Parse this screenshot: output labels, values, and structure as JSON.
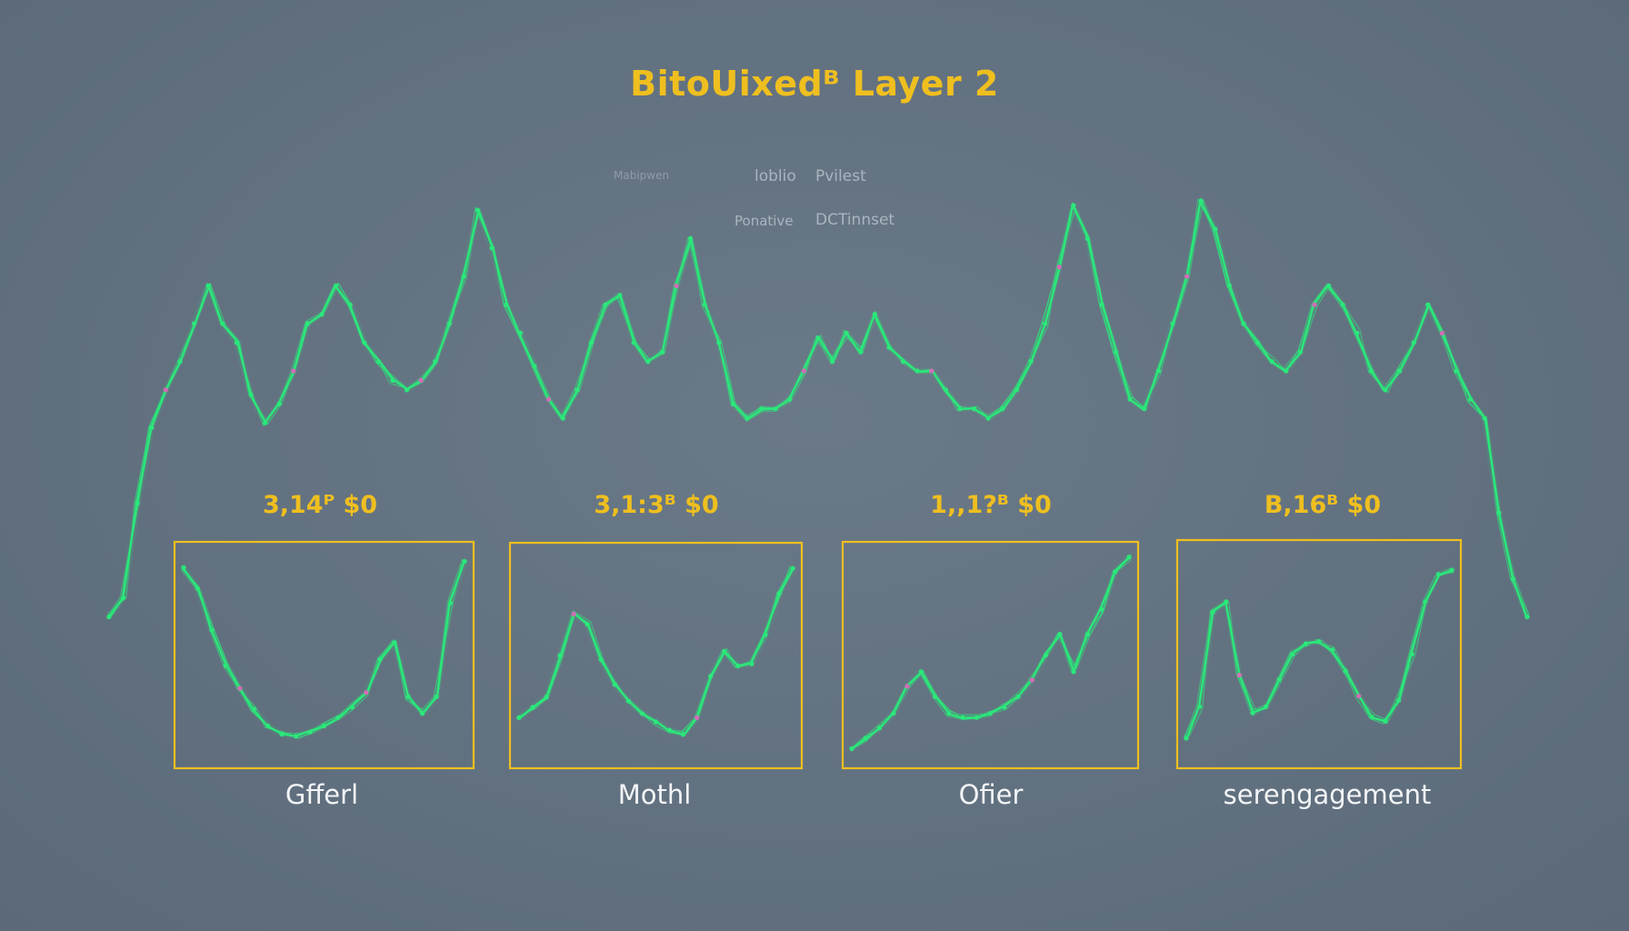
{
  "title": "BitoUixedᴮ Layer 2",
  "legend_texts": [
    "Mabipwen",
    "loblio",
    "Pvilest",
    "Ponative",
    "DCTinnset"
  ],
  "colors": {
    "background": "#627180",
    "accent": "#efbf1f",
    "line_green": "#2be87a",
    "line_pink": "#d46bb6",
    "label_white": "#f2f4f6"
  },
  "chart_data": [
    {
      "type": "line",
      "title": "BitoUixedᴮ Layer 2",
      "xlabel": "",
      "ylabel": "",
      "grid": false,
      "x": [
        0,
        1,
        2,
        3,
        4,
        5,
        6,
        7,
        8,
        9,
        10,
        11,
        12,
        13,
        14,
        15,
        16,
        17,
        18,
        19,
        20,
        21,
        22,
        23,
        24,
        25,
        26,
        27,
        28,
        29,
        30,
        31,
        32,
        33,
        34,
        35,
        36,
        37,
        38,
        39,
        40,
        41,
        42,
        43,
        44,
        45,
        46,
        47,
        48,
        49,
        50,
        51,
        52,
        53,
        54,
        55,
        56,
        57,
        58,
        59,
        60,
        61,
        62,
        63,
        64,
        65,
        66,
        67,
        68,
        69,
        70,
        71,
        72,
        73,
        74,
        75,
        76,
        77,
        78,
        79,
        80,
        81,
        82,
        83,
        84,
        85,
        86,
        87,
        88,
        89,
        90,
        91,
        92,
        93,
        94,
        95,
        96,
        97,
        98,
        99,
        100
      ],
      "series": [
        {
          "values": [
            0.08,
            0.12,
            0.32,
            0.48,
            0.56,
            0.62,
            0.7,
            0.78,
            0.7,
            0.66,
            0.55,
            0.49,
            0.53,
            0.6,
            0.7,
            0.72,
            0.78,
            0.74,
            0.66,
            0.62,
            0.58,
            0.56,
            0.58,
            0.62,
            0.7,
            0.8,
            0.94,
            0.86,
            0.74,
            0.68,
            0.61,
            0.54,
            0.5,
            0.56,
            0.66,
            0.74,
            0.76,
            0.66,
            0.62,
            0.64,
            0.78,
            0.88,
            0.74,
            0.66,
            0.53,
            0.5,
            0.52,
            0.52,
            0.54,
            0.6,
            0.67,
            0.62,
            0.68,
            0.64,
            0.72,
            0.65,
            0.62,
            0.6,
            0.6,
            0.56,
            0.52,
            0.52,
            0.5,
            0.52,
            0.56,
            0.62,
            0.7,
            0.82,
            0.95,
            0.88,
            0.74,
            0.64,
            0.54,
            0.52,
            0.6,
            0.7,
            0.8,
            0.96,
            0.9,
            0.78,
            0.7,
            0.66,
            0.62,
            0.6,
            0.64,
            0.74,
            0.78,
            0.74,
            0.68,
            0.6,
            0.56,
            0.6,
            0.66,
            0.74,
            0.68,
            0.6,
            0.54,
            0.5,
            0.3,
            0.16,
            0.08
          ]
        }
      ]
    },
    {
      "type": "line",
      "value_label": "3,14ᴾ $0",
      "label": "Gfferl",
      "x": [
        0,
        1,
        2,
        3,
        4,
        5,
        6,
        7,
        8,
        9,
        10,
        11,
        12,
        13,
        14,
        15,
        16,
        17,
        18,
        19,
        20
      ],
      "series": [
        {
          "values": [
            0.92,
            0.82,
            0.62,
            0.45,
            0.34,
            0.24,
            0.16,
            0.12,
            0.11,
            0.13,
            0.16,
            0.2,
            0.25,
            0.32,
            0.48,
            0.56,
            0.3,
            0.22,
            0.3,
            0.75,
            0.95
          ]
        }
      ]
    },
    {
      "type": "line",
      "value_label": "3,1:3ᴮ $0",
      "label": "Mothl",
      "x": [
        0,
        1,
        2,
        3,
        4,
        5,
        6,
        7,
        8,
        9,
        10,
        11,
        12,
        13,
        14,
        15,
        16,
        17,
        18,
        19,
        20
      ],
      "series": [
        {
          "values": [
            0.2,
            0.25,
            0.3,
            0.5,
            0.7,
            0.65,
            0.48,
            0.36,
            0.28,
            0.22,
            0.18,
            0.14,
            0.12,
            0.2,
            0.4,
            0.52,
            0.45,
            0.46,
            0.6,
            0.8,
            0.92
          ]
        }
      ]
    },
    {
      "type": "line",
      "value_label": "1,,1?ᴮ $0",
      "label": "Ofier",
      "x": [
        0,
        1,
        2,
        3,
        4,
        5,
        6,
        7,
        8,
        9,
        10,
        11,
        12,
        13,
        14,
        15,
        16,
        17,
        18,
        19,
        20
      ],
      "series": [
        {
          "values": [
            0.05,
            0.1,
            0.15,
            0.22,
            0.35,
            0.42,
            0.3,
            0.22,
            0.2,
            0.2,
            0.22,
            0.25,
            0.3,
            0.38,
            0.5,
            0.6,
            0.42,
            0.6,
            0.72,
            0.9,
            0.97
          ]
        }
      ]
    },
    {
      "type": "line",
      "value_label": "B,16ᴮ $0",
      "label": "serengagement",
      "x": [
        0,
        1,
        2,
        3,
        4,
        5,
        6,
        7,
        8,
        9,
        10,
        11,
        12,
        13,
        14,
        15,
        16,
        17,
        18,
        19,
        20
      ],
      "series": [
        {
          "values": [
            0.1,
            0.25,
            0.7,
            0.75,
            0.4,
            0.22,
            0.25,
            0.38,
            0.5,
            0.55,
            0.56,
            0.52,
            0.42,
            0.3,
            0.2,
            0.18,
            0.28,
            0.5,
            0.75,
            0.88,
            0.9
          ]
        }
      ]
    }
  ]
}
